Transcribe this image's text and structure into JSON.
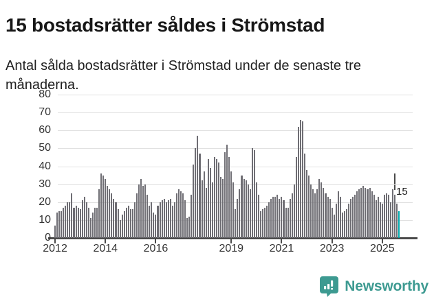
{
  "header": {
    "title": "15 bostadsrätter såldes i Strömstad",
    "subtitle": "Antal sålda bostadsrätter i Strömstad under de senaste tre månaderna."
  },
  "chart_data": {
    "type": "bar",
    "title": "15 bostadsrätter såldes i Strömstad",
    "subtitle": "Antal sålda bostadsrätter i Strömstad under de senaste tre månaderna.",
    "xlabel": "",
    "ylabel": "",
    "ylim": [
      0,
      80
    ],
    "grid": true,
    "x_start": "2012-01",
    "x_end": "2025-09",
    "x_unit": "month",
    "yticks": [
      0,
      10,
      20,
      30,
      40,
      50,
      60,
      70,
      80
    ],
    "xticks": [
      {
        "label": "2012",
        "month_index": 0
      },
      {
        "label": "2014",
        "month_index": 24
      },
      {
        "label": "2016",
        "month_index": 48
      },
      {
        "label": "2019",
        "month_index": 84
      },
      {
        "label": "2021",
        "month_index": 108
      },
      {
        "label": "2023",
        "month_index": 132
      },
      {
        "label": "2025",
        "month_index": 156
      }
    ],
    "values": [
      7,
      14,
      15,
      15,
      17,
      18,
      20,
      20,
      25,
      17,
      18,
      17,
      16,
      21,
      23,
      20,
      17,
      11,
      14,
      17,
      17,
      27,
      36,
      35,
      33,
      29,
      27,
      25,
      22,
      20,
      16,
      10,
      13,
      15,
      17,
      18,
      16,
      16,
      20,
      25,
      30,
      33,
      29,
      30,
      24,
      18,
      20,
      14,
      13,
      18,
      20,
      21,
      22,
      20,
      21,
      22,
      18,
      20,
      25,
      27,
      26,
      25,
      21,
      11,
      12,
      24,
      41,
      50,
      57,
      47,
      32,
      37,
      28,
      44,
      39,
      31,
      45,
      44,
      42,
      34,
      33,
      48,
      52,
      45,
      37,
      31,
      16,
      22,
      27,
      35,
      33,
      32,
      30,
      27,
      50,
      49,
      31,
      24,
      15,
      16,
      17,
      18,
      20,
      22,
      23,
      23,
      24,
      22,
      23,
      21,
      17,
      17,
      22,
      25,
      30,
      45,
      62,
      66,
      65,
      47,
      38,
      35,
      30,
      27,
      25,
      27,
      33,
      31,
      28,
      25,
      23,
      22,
      17,
      13,
      19,
      26,
      23,
      14,
      15,
      16,
      19,
      22,
      23,
      24,
      26,
      27,
      28,
      29,
      28,
      27,
      28,
      26,
      24,
      21,
      23,
      20,
      19,
      24,
      25,
      24,
      20,
      27,
      24,
      19,
      15
    ],
    "bar_color": "#6f6e74",
    "highlight": {
      "index": 164,
      "value": 15,
      "label": "15",
      "color": "#00a9ad"
    }
  },
  "footer": {
    "brand": "Newsworthy",
    "logo_color": "#3d9a91",
    "logo_icon": "bar-chart-bubble-icon"
  }
}
